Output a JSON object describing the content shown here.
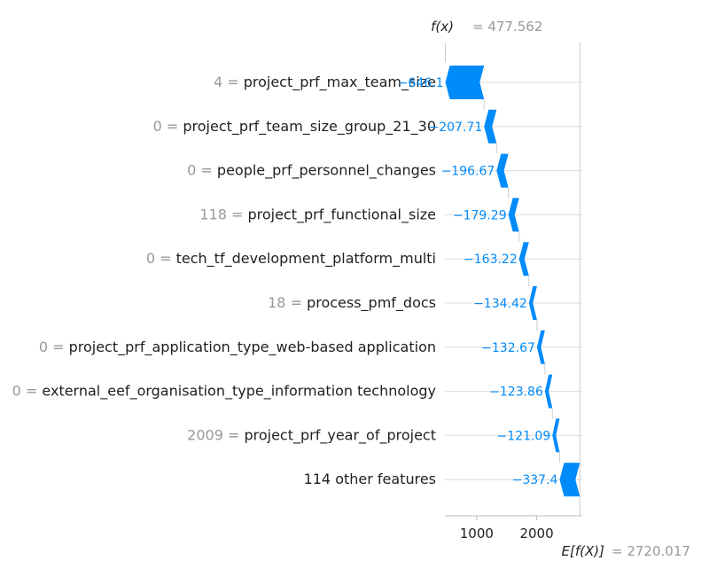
{
  "chart_data": {
    "type": "waterfall",
    "fx_label": "f(x)",
    "fx_value": "= 477.562",
    "ex_label": "E[f(X)]",
    "ex_value": "= 2720.017",
    "xticks": [
      "1000",
      "2000"
    ],
    "xlim": [
      470,
      2760
    ],
    "base_value": 2720.017,
    "output_value": 477.562,
    "features": [
      {
        "value": "4 =",
        "name": "project_prf_max_team_size",
        "contribution": -646.1,
        "label": "−646.1"
      },
      {
        "value": "0 =",
        "name": "project_prf_team_size_group_21_30",
        "contribution": -207.71,
        "label": "−207.71"
      },
      {
        "value": "0 =",
        "name": "people_prf_personnel_changes",
        "contribution": -196.67,
        "label": "−196.67"
      },
      {
        "value": "118 =",
        "name": "project_prf_functional_size",
        "contribution": -179.29,
        "label": "−179.29"
      },
      {
        "value": "0 =",
        "name": "tech_tf_development_platform_multi",
        "contribution": -163.22,
        "label": "−163.22"
      },
      {
        "value": "18 =",
        "name": "process_pmf_docs",
        "contribution": -134.42,
        "label": "−134.42"
      },
      {
        "value": "0 =",
        "name": "project_prf_application_type_web-based application",
        "contribution": -132.67,
        "label": "−132.67"
      },
      {
        "value": "0 =",
        "name": "external_eef_organisation_type_information technology",
        "contribution": -123.86,
        "label": "−123.86"
      },
      {
        "value": "2009 =",
        "name": "project_prf_year_of_project",
        "contribution": -121.09,
        "label": "−121.09"
      },
      {
        "value": "",
        "name": "114 other features",
        "contribution": -337.4,
        "label": "−337.4"
      }
    ],
    "colors": {
      "negative": "#008bfb",
      "grid": "#cccccc",
      "axis": "#bbbbbb",
      "value_text": "#999999",
      "name_text": "#1f1f1f"
    }
  }
}
